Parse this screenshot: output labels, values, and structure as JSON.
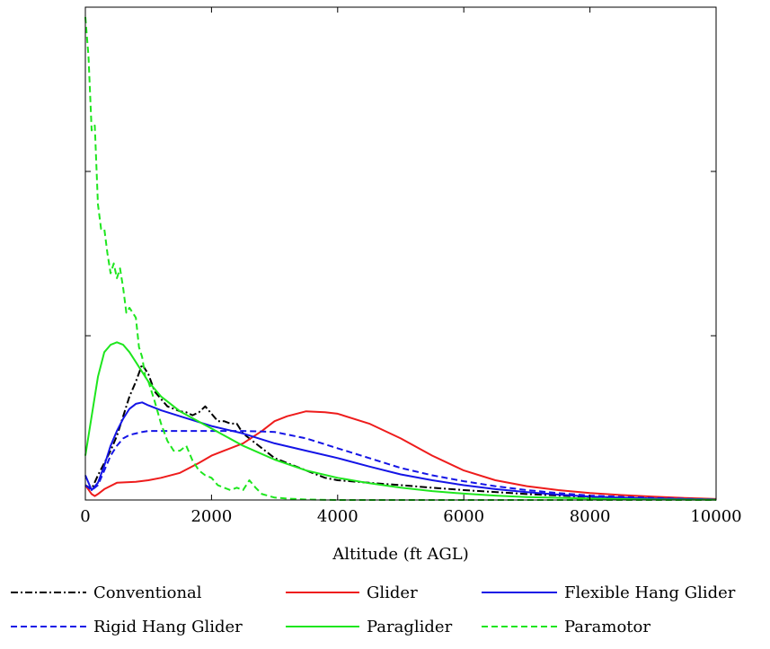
{
  "chart_data": {
    "type": "line",
    "title": "",
    "xlabel": "Altitude (ft AGL)",
    "ylabel": "",
    "xlim": [
      0,
      10000
    ],
    "ylim": [
      0,
      1
    ],
    "x_ticks": [
      0,
      2000,
      4000,
      6000,
      8000,
      10000
    ],
    "x_tick_labels": [
      "0",
      "2000",
      "4000",
      "6000",
      "8000",
      "10000"
    ],
    "y_ticks": [
      0,
      0.3333,
      0.6667,
      1
    ],
    "grid": false,
    "legend_position": "bottom",
    "series": [
      {
        "name": "Conventional",
        "color": "#000000",
        "dash": "dashdot",
        "x": [
          0,
          100,
          200,
          300,
          400,
          500,
          600,
          700,
          800,
          900,
          1000,
          1100,
          1200,
          1300,
          1400,
          1500,
          1600,
          1700,
          1800,
          1900,
          2000,
          2100,
          2200,
          2300,
          2400,
          2500,
          2600,
          2800,
          3000,
          3200,
          3400,
          3600,
          3800,
          4000,
          4500,
          5000,
          5500,
          6000,
          7000,
          8000,
          9000,
          10000
        ],
        "y": [
          0.03,
          0.022,
          0.05,
          0.075,
          0.1,
          0.13,
          0.17,
          0.21,
          0.24,
          0.275,
          0.255,
          0.22,
          0.205,
          0.19,
          0.185,
          0.18,
          0.178,
          0.172,
          0.178,
          0.19,
          0.175,
          0.16,
          0.16,
          0.155,
          0.155,
          0.135,
          0.125,
          0.105,
          0.085,
          0.075,
          0.065,
          0.055,
          0.045,
          0.04,
          0.035,
          0.03,
          0.025,
          0.02,
          0.012,
          0.006,
          0.003,
          0.001
        ]
      },
      {
        "name": "Glider",
        "color": "#ee1c1c",
        "dash": "solid",
        "x": [
          0,
          100,
          150,
          200,
          300,
          500,
          800,
          1000,
          1200,
          1500,
          1800,
          2000,
          2200,
          2500,
          2800,
          3000,
          3200,
          3500,
          3800,
          4000,
          4500,
          5000,
          5500,
          6000,
          6500,
          7000,
          7500,
          8000,
          8500,
          9000,
          9500,
          10000
        ],
        "y": [
          0.03,
          0.012,
          0.008,
          0.012,
          0.022,
          0.035,
          0.037,
          0.04,
          0.045,
          0.055,
          0.075,
          0.09,
          0.1,
          0.115,
          0.14,
          0.16,
          0.17,
          0.18,
          0.178,
          0.175,
          0.155,
          0.125,
          0.09,
          0.06,
          0.04,
          0.028,
          0.02,
          0.014,
          0.01,
          0.007,
          0.004,
          0.002
        ]
      },
      {
        "name": "Flexible Hang Glider",
        "color": "#1414e6",
        "dash": "solid",
        "x": [
          0,
          100,
          200,
          300,
          400,
          500,
          600,
          700,
          800,
          900,
          1000,
          1200,
          1500,
          2000,
          2500,
          3000,
          3500,
          4000,
          4500,
          5000,
          5500,
          6000,
          6500,
          7000,
          7500,
          8000,
          9000,
          10000
        ],
        "y": [
          0.05,
          0.02,
          0.035,
          0.07,
          0.11,
          0.14,
          0.165,
          0.185,
          0.195,
          0.198,
          0.192,
          0.182,
          0.17,
          0.15,
          0.135,
          0.115,
          0.1,
          0.085,
          0.068,
          0.052,
          0.04,
          0.03,
          0.022,
          0.016,
          0.011,
          0.007,
          0.003,
          0.001
        ]
      },
      {
        "name": "Rigid Hang Glider",
        "color": "#1414e6",
        "dash": "dashed",
        "x": [
          0,
          100,
          200,
          300,
          400,
          500,
          600,
          700,
          800,
          900,
          1000,
          1200,
          1500,
          2000,
          2500,
          3000,
          3500,
          4000,
          4500,
          5000,
          5500,
          6000,
          6500,
          7000,
          7500,
          8000,
          9000,
          10000
        ],
        "y": [
          0.03,
          0.02,
          0.03,
          0.06,
          0.09,
          0.11,
          0.125,
          0.132,
          0.135,
          0.138,
          0.14,
          0.14,
          0.14,
          0.14,
          0.14,
          0.138,
          0.125,
          0.105,
          0.085,
          0.065,
          0.05,
          0.038,
          0.028,
          0.02,
          0.014,
          0.009,
          0.004,
          0.001
        ]
      },
      {
        "name": "Paraglider",
        "color": "#1ee61e",
        "dash": "solid",
        "x": [
          0,
          100,
          200,
          300,
          400,
          500,
          600,
          700,
          800,
          900,
          1000,
          1200,
          1500,
          2000,
          2500,
          3000,
          3500,
          4000,
          4500,
          5000,
          5500,
          6000,
          6500,
          7000,
          8000,
          9000,
          10000
        ],
        "y": [
          0.09,
          0.17,
          0.25,
          0.3,
          0.315,
          0.32,
          0.315,
          0.3,
          0.28,
          0.26,
          0.24,
          0.21,
          0.18,
          0.145,
          0.11,
          0.082,
          0.06,
          0.045,
          0.034,
          0.025,
          0.018,
          0.013,
          0.009,
          0.006,
          0.003,
          0.001,
          0.0005
        ]
      },
      {
        "name": "Paramotor",
        "color": "#1ee61e",
        "dash": "dashed",
        "x": [
          0,
          50,
          100,
          150,
          200,
          250,
          300,
          350,
          400,
          450,
          500,
          550,
          600,
          650,
          700,
          750,
          800,
          850,
          900,
          950,
          1000,
          1100,
          1200,
          1300,
          1400,
          1500,
          1600,
          1700,
          1800,
          1900,
          2000,
          2100,
          2200,
          2300,
          2400,
          2500,
          2600,
          2700,
          2800,
          3000,
          3200,
          3500,
          4000,
          5000,
          6000,
          10000
        ],
        "y": [
          0.98,
          0.9,
          0.75,
          0.76,
          0.6,
          0.55,
          0.55,
          0.5,
          0.46,
          0.48,
          0.45,
          0.47,
          0.43,
          0.38,
          0.39,
          0.38,
          0.37,
          0.31,
          0.29,
          0.25,
          0.24,
          0.2,
          0.155,
          0.12,
          0.1,
          0.1,
          0.11,
          0.08,
          0.06,
          0.05,
          0.045,
          0.03,
          0.025,
          0.02,
          0.025,
          0.02,
          0.04,
          0.025,
          0.012,
          0.005,
          0.003,
          0.001,
          0,
          0,
          0,
          0
        ]
      }
    ]
  }
}
